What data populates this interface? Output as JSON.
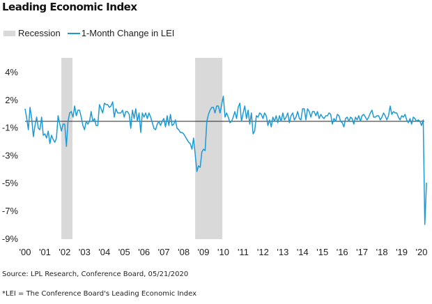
{
  "chart_data": {
    "type": "line",
    "title": "Leading Economic Index",
    "legend": [
      {
        "name": "Recession",
        "color": "#d9d9d9"
      },
      {
        "name": "1-Month Change in LEI",
        "color": "#1b9ad6"
      }
    ],
    "legend_placement": "top-left",
    "xlabel": "",
    "ylabel": "",
    "x_start": 2000,
    "x_step_months": 1,
    "xlim": [
      2000,
      2020
    ],
    "xticks": [
      "'00",
      "'01",
      "'02",
      "'03",
      "'04",
      "'05",
      "'06",
      "'07",
      "'08",
      "'09",
      "'10",
      "'11",
      "'12",
      "'13",
      "'14",
      "'15",
      "'16",
      "'17",
      "'18",
      "'19",
      "'20"
    ],
    "yticks": [
      "4%",
      "2%",
      "-1%",
      "-3%",
      "-5%",
      "-7%",
      "-9%"
    ],
    "recessions": [
      [
        2001.83,
        2002.39
      ],
      [
        2008.58,
        2009.95
      ]
    ],
    "reference_line": 0,
    "series": [
      {
        "name": "1-Month Change in LEI",
        "color": "#1b9ad6",
        "values": [
          0.9,
          0.2,
          -0.6,
          1.0,
          0.2,
          -1.1,
          -0.3,
          0.3,
          -0.5,
          -0.6,
          0.3,
          -1.0,
          -0.9,
          -1.2,
          -0.7,
          -1.6,
          -1.0,
          -1.3,
          -1.5,
          -1.2,
          0.4,
          -0.2,
          -0.7,
          -0.2,
          -0.2,
          -1.8,
          0.0,
          0.6,
          0.7,
          0.3,
          1.1,
          0.4,
          0.8,
          0.8,
          0.3,
          -0.3,
          -0.6,
          0.0,
          -0.2,
          0.0,
          0.7,
          0.0,
          0.2,
          -0.3,
          -0.3,
          1.2,
          0.9,
          0.6,
          1.3,
          1.2,
          1.2,
          1.0,
          1.1,
          1.4,
          0.3,
          0.9,
          0.6,
          0.6,
          0.6,
          0.8,
          0.3,
          0.7,
          0.7,
          0.5,
          -0.5,
          0.8,
          0.2,
          0.9,
          0.0,
          0.6,
          -0.8,
          0.6,
          0.3,
          0.6,
          0.2,
          0.6,
          0.3,
          -0.1,
          -0.5,
          -0.6,
          -0.2,
          0.0,
          -0.3,
          0.0,
          0.2,
          -0.4,
          0.4,
          -0.3,
          0.5,
          -0.3,
          -0.2,
          0.1,
          -0.5,
          -0.6,
          -0.8,
          -0.8,
          -0.9,
          -1.1,
          -1.3,
          -1.5,
          -1.6,
          -2.0,
          -1.2,
          -2.4,
          -3.6,
          -3.2,
          -3.3,
          -2.2,
          -2.0,
          -2.1,
          0.0,
          0.5,
          0.8,
          1.0,
          1.0,
          0.6,
          1.1,
          1.1,
          0.6,
          1.2,
          1.8,
          0.3,
          0.6,
          0.3,
          -0.1,
          0.0,
          0.3,
          0.7,
          0.2,
          1.0,
          1.3,
          0.0,
          0.6,
          1.1,
          0.2,
          0.8,
          -0.2,
          0.6,
          -0.9,
          -0.7,
          0.4,
          0.3,
          0.6,
          0.5,
          0.2,
          0.6,
          0.4,
          -0.3,
          0.1,
          -0.4,
          0.3,
          0.0,
          0.4,
          -0.1,
          0.4,
          0.0,
          0.6,
          0.1,
          0.3,
          0.6,
          -0.1,
          0.4,
          0.6,
          0.1,
          0.3,
          0.7,
          0.2,
          0.1,
          0.9,
          0.9,
          0.1,
          0.9,
          0.7,
          0.3,
          0.7,
          0.7,
          0.4,
          0.7,
          0.2,
          0.5,
          0.3,
          0.2,
          0.4,
          0.4,
          0.6,
          0.5,
          -0.2,
          0.2,
          0.0,
          0.5,
          0.4,
          0.0,
          -0.1,
          -0.4,
          0.2,
          0.3,
          0.0,
          0.3,
          0.2,
          -0.2,
          0.3,
          0.1,
          0.4,
          0.0,
          0.4,
          0.5,
          0.3,
          0.1,
          0.3,
          0.6,
          0.8,
          0.3,
          0.3,
          0.4,
          0.4,
          0.1,
          0.3,
          0.6,
          0.4,
          0.1,
          0.4,
          1.1,
          0.5,
          0.7,
          0.6,
          0.6,
          0.3,
          0.1,
          0.4,
          0.3,
          0.5,
          0.1,
          -0.1,
          0.2,
          -0.2,
          0.3,
          0.2,
          0.0,
          0.1,
          0.0,
          -0.3,
          0.1,
          -7.4,
          -4.4
        ]
      }
    ],
    "source": "Source: LPL Research, Conference Board, 05/21/2020",
    "footnote": "*LEI = The Conference Board's Leading Economic Index"
  }
}
